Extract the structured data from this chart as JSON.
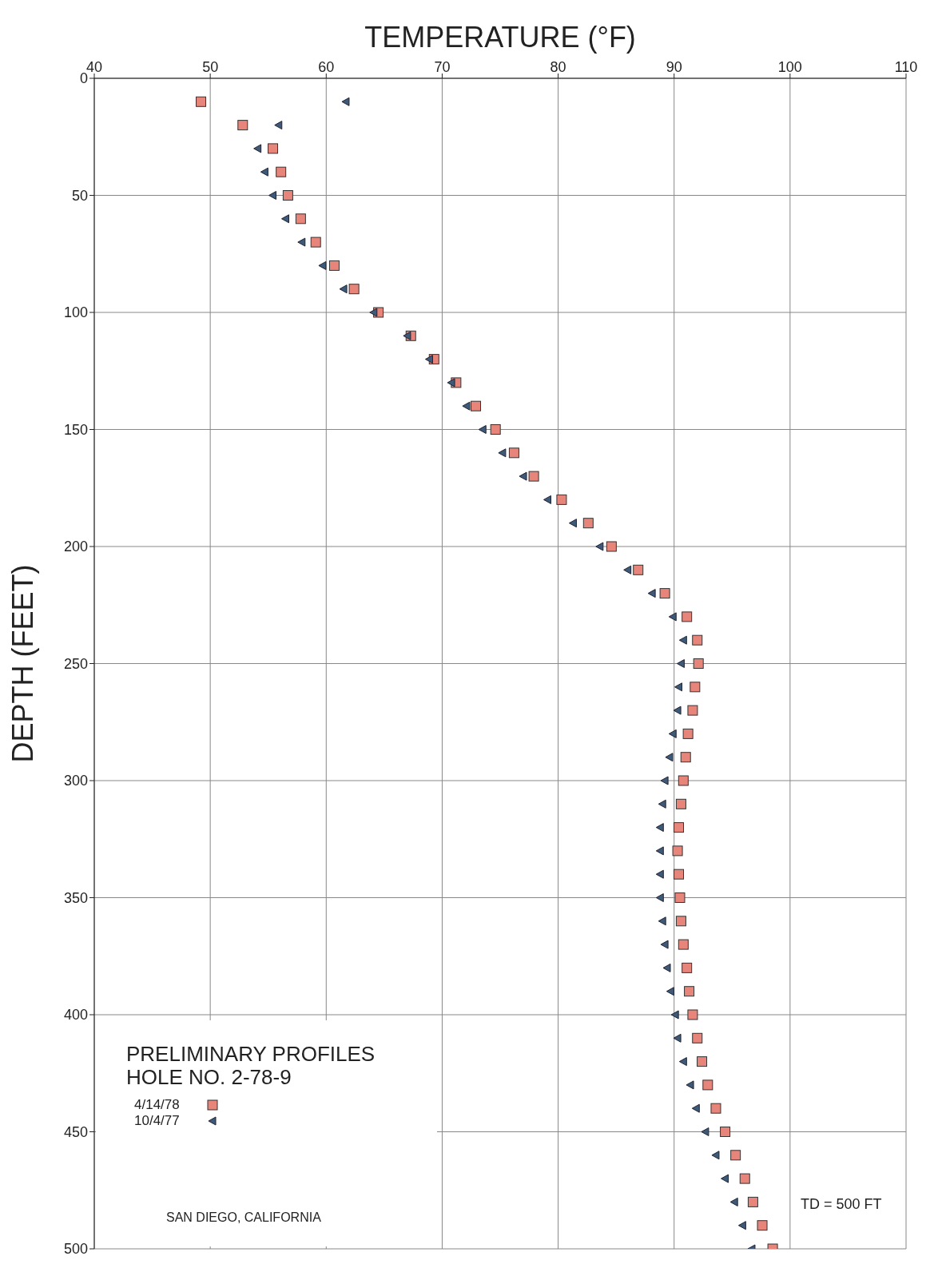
{
  "chart_data": {
    "type": "scatter",
    "xlabel": "TEMPERATURE (°F)",
    "ylabel": "DEPTH (FEET)",
    "xlim": [
      40,
      110
    ],
    "xticks": [
      40,
      50,
      60,
      70,
      80,
      90,
      100,
      110
    ],
    "ylim": [
      500,
      0
    ],
    "yticks": [
      0,
      50,
      100,
      150,
      200,
      250,
      300,
      350,
      400,
      450,
      500
    ],
    "grid": true,
    "legend": "bottom left",
    "annotations": [
      "PRELIMINARY PROFILES",
      "HOLE NO. 2-78-9",
      "SAN DIEGO, CALIFORNIA",
      "TD = 500 FT"
    ],
    "series": [
      {
        "name": "4/14/78",
        "color": "#e8857a",
        "marker": "square",
        "x": [
          49.2,
          52.8,
          55.4,
          56.1,
          56.7,
          57.8,
          59.1,
          60.7,
          62.4,
          64.5,
          67.3,
          69.3,
          71.2,
          72.9,
          74.6,
          76.2,
          77.9,
          80.3,
          82.6,
          84.6,
          86.9,
          89.2,
          91.1,
          92.0,
          92.1,
          91.8,
          91.6,
          91.2,
          91.0,
          90.8,
          90.6,
          90.4,
          90.3,
          90.4,
          90.5,
          90.6,
          90.8,
          91.1,
          91.3,
          91.6,
          92.0,
          92.4,
          92.9,
          93.6,
          94.4,
          95.3,
          96.1,
          96.8,
          97.6,
          98.5
        ],
        "values": [
          10,
          20,
          30,
          40,
          50,
          60,
          70,
          80,
          90,
          100,
          110,
          120,
          130,
          140,
          150,
          160,
          170,
          180,
          190,
          200,
          210,
          220,
          230,
          240,
          250,
          260,
          270,
          280,
          290,
          300,
          310,
          320,
          330,
          340,
          350,
          360,
          370,
          380,
          390,
          400,
          410,
          420,
          430,
          440,
          450,
          460,
          470,
          480,
          490,
          500
        ]
      },
      {
        "name": "10/4/77",
        "color": "#3d5a78",
        "marker": "triangle",
        "x": [
          61.7,
          55.9,
          54.1,
          54.7,
          55.4,
          56.5,
          57.9,
          59.7,
          61.5,
          64.1,
          67.0,
          68.9,
          70.8,
          72.1,
          73.5,
          75.2,
          77.0,
          79.1,
          81.3,
          83.6,
          86.0,
          88.1,
          89.9,
          90.8,
          90.6,
          90.4,
          90.3,
          89.9,
          89.6,
          89.2,
          89.0,
          88.8,
          88.8,
          88.8,
          88.8,
          89.0,
          89.2,
          89.4,
          89.7,
          90.1,
          90.3,
          90.8,
          91.4,
          91.9,
          92.7,
          93.6,
          94.4,
          95.2,
          95.9,
          96.7
        ],
        "values": [
          10,
          20,
          30,
          40,
          50,
          60,
          70,
          80,
          90,
          100,
          110,
          120,
          130,
          140,
          150,
          160,
          170,
          180,
          190,
          200,
          210,
          220,
          230,
          240,
          250,
          260,
          270,
          280,
          290,
          300,
          310,
          320,
          330,
          340,
          350,
          360,
          370,
          380,
          390,
          400,
          410,
          420,
          430,
          440,
          450,
          460,
          470,
          480,
          490,
          500
        ]
      }
    ]
  }
}
